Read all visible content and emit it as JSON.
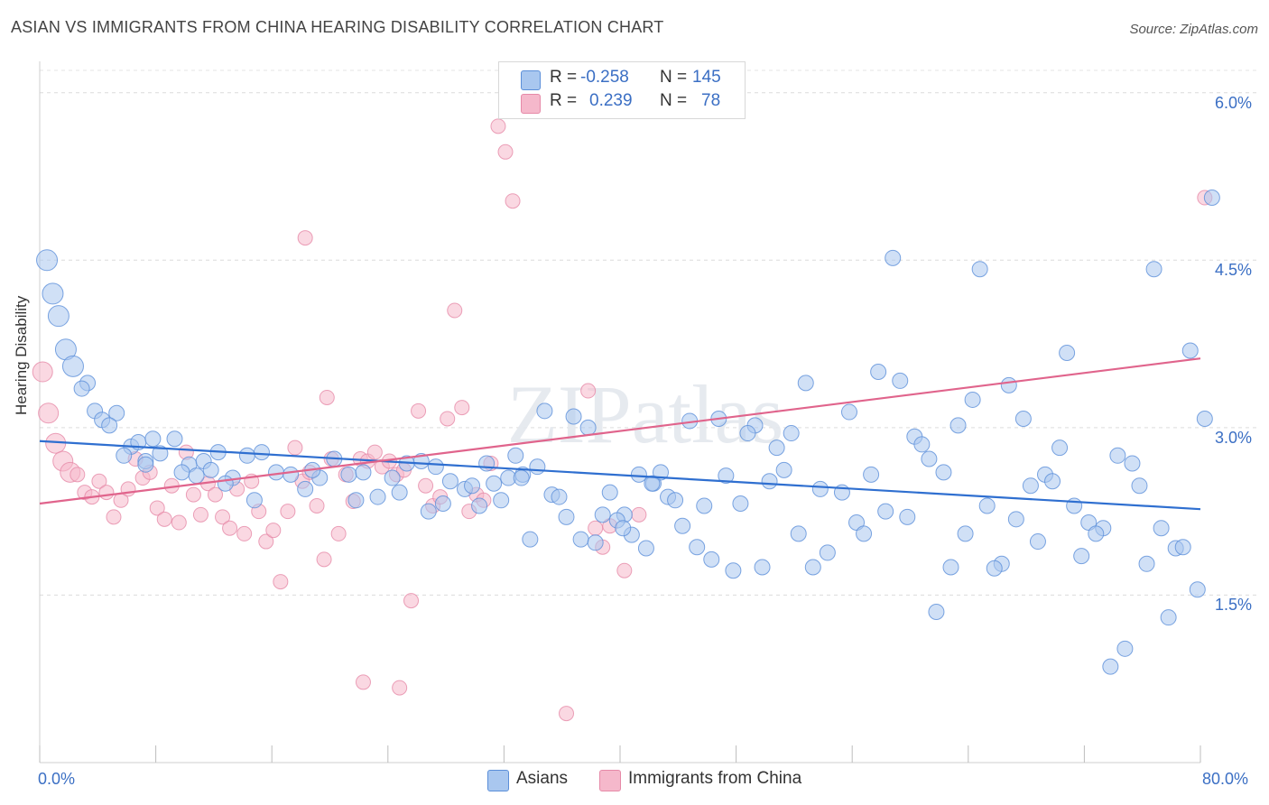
{
  "title": "ASIAN VS IMMIGRANTS FROM CHINA HEARING DISABILITY CORRELATION CHART",
  "source": "Source: ZipAtlas.com",
  "watermark": "ZIPatlas",
  "legend_top": {
    "rows": [
      {
        "r_label": "R =",
        "r_value": "-0.258",
        "n_label": "N =",
        "n_value": "145",
        "color": "#a9c7ef"
      },
      {
        "r_label": "R =",
        "r_value": "0.239",
        "n_label": "N =",
        "n_value": "78",
        "color": "#f5b8cb"
      }
    ]
  },
  "legend_bottom": [
    {
      "label": "Asians",
      "color": "#a9c7ef"
    },
    {
      "label": "Immigrants from China",
      "color": "#f5b8cb"
    }
  ],
  "chart_data": {
    "type": "scatter",
    "title": "ASIAN VS IMMIGRANTS FROM CHINA HEARING DISABILITY CORRELATION CHART",
    "xlabel": "",
    "ylabel": "Hearing Disability",
    "xlim": [
      0,
      80
    ],
    "ylim": [
      0,
      6.2
    ],
    "x_tick_labels": [
      "0.0%",
      "80.0%"
    ],
    "y_ticks": [
      1.5,
      3.0,
      4.5,
      6.0
    ],
    "y_tick_labels": [
      "1.5%",
      "3.0%",
      "4.5%",
      "6.0%"
    ],
    "grid": true,
    "legend_position": "top-center",
    "series": [
      {
        "name": "Asians",
        "color": "#5b8fd9",
        "fill": "#a9c7ef",
        "trend": {
          "x0": 0,
          "y0": 2.88,
          "x1": 80,
          "y1": 2.27,
          "color": "#2f6fd0"
        },
        "points": [
          [
            0.5,
            4.5
          ],
          [
            0.9,
            4.2
          ],
          [
            1.3,
            4.0
          ],
          [
            1.8,
            3.7
          ],
          [
            2.3,
            3.55
          ],
          [
            3.3,
            3.4
          ],
          [
            2.9,
            3.35
          ],
          [
            3.8,
            3.15
          ],
          [
            5.3,
            3.13
          ],
          [
            4.3,
            3.07
          ],
          [
            4.8,
            3.02
          ],
          [
            6.3,
            2.83
          ],
          [
            6.8,
            2.87
          ],
          [
            7.8,
            2.9
          ],
          [
            9.3,
            2.9
          ],
          [
            5.8,
            2.75
          ],
          [
            7.3,
            2.7
          ],
          [
            8.3,
            2.77
          ],
          [
            10.3,
            2.67
          ],
          [
            11.3,
            2.7
          ],
          [
            12.3,
            2.78
          ],
          [
            7.3,
            2.67
          ],
          [
            9.8,
            2.6
          ],
          [
            10.8,
            2.57
          ],
          [
            11.8,
            2.62
          ],
          [
            13.3,
            2.55
          ],
          [
            14.3,
            2.75
          ],
          [
            15.3,
            2.78
          ],
          [
            16.3,
            2.6
          ],
          [
            17.3,
            2.58
          ],
          [
            12.8,
            2.5
          ],
          [
            14.8,
            2.35
          ],
          [
            18.3,
            2.45
          ],
          [
            19.3,
            2.55
          ],
          [
            20.3,
            2.72
          ],
          [
            21.3,
            2.58
          ],
          [
            22.3,
            2.6
          ],
          [
            24.3,
            2.55
          ],
          [
            25.3,
            2.68
          ],
          [
            26.3,
            2.7
          ],
          [
            23.3,
            2.38
          ],
          [
            27.3,
            2.65
          ],
          [
            28.3,
            2.52
          ],
          [
            29.3,
            2.45
          ],
          [
            30.3,
            2.3
          ],
          [
            31.3,
            2.5
          ],
          [
            32.3,
            2.55
          ],
          [
            33.3,
            2.58
          ],
          [
            34.3,
            2.65
          ],
          [
            35.3,
            2.4
          ],
          [
            36.3,
            2.2
          ],
          [
            37.3,
            2.0
          ],
          [
            38.3,
            1.97
          ],
          [
            39.3,
            2.42
          ],
          [
            40.3,
            2.22
          ],
          [
            41.3,
            2.58
          ],
          [
            42.3,
            2.5
          ],
          [
            43.3,
            2.38
          ],
          [
            44.3,
            2.12
          ],
          [
            45.3,
            1.93
          ],
          [
            46.3,
            1.82
          ],
          [
            47.3,
            2.57
          ],
          [
            48.3,
            2.32
          ],
          [
            49.3,
            3.02
          ],
          [
            50.3,
            2.52
          ],
          [
            51.3,
            2.62
          ],
          [
            52.3,
            2.05
          ],
          [
            53.3,
            1.75
          ],
          [
            54.3,
            1.88
          ],
          [
            55.3,
            2.42
          ],
          [
            56.3,
            2.15
          ],
          [
            57.3,
            2.58
          ],
          [
            58.3,
            2.25
          ],
          [
            59.3,
            3.42
          ],
          [
            60.3,
            2.92
          ],
          [
            61.3,
            2.72
          ],
          [
            62.3,
            2.6
          ],
          [
            63.3,
            3.02
          ],
          [
            64.3,
            3.25
          ],
          [
            65.3,
            2.3
          ],
          [
            66.3,
            1.78
          ],
          [
            67.3,
            2.18
          ],
          [
            68.3,
            2.48
          ],
          [
            69.3,
            2.58
          ],
          [
            70.3,
            2.82
          ],
          [
            71.3,
            2.3
          ],
          [
            72.3,
            2.15
          ],
          [
            73.3,
            2.1
          ],
          [
            74.3,
            2.75
          ],
          [
            75.3,
            2.68
          ],
          [
            76.3,
            1.78
          ],
          [
            77.3,
            2.1
          ],
          [
            78.3,
            1.92
          ],
          [
            79.3,
            3.69
          ],
          [
            33.8,
            2.0
          ],
          [
            36.8,
            3.1
          ],
          [
            40.8,
            2.04
          ],
          [
            43.8,
            2.35
          ],
          [
            46.8,
            3.08
          ],
          [
            49.8,
            1.75
          ],
          [
            52.8,
            3.4
          ],
          [
            55.8,
            3.14
          ],
          [
            58.8,
            4.52
          ],
          [
            61.8,
            1.35
          ],
          [
            64.8,
            4.42
          ],
          [
            67.8,
            3.08
          ],
          [
            70.8,
            3.67
          ],
          [
            73.8,
            0.86
          ],
          [
            76.8,
            4.42
          ],
          [
            80.3,
            3.08
          ],
          [
            26.8,
            2.25
          ],
          [
            29.8,
            2.48
          ],
          [
            32.8,
            2.75
          ],
          [
            35.8,
            2.38
          ],
          [
            38.8,
            2.22
          ],
          [
            41.8,
            1.92
          ],
          [
            44.8,
            3.06
          ],
          [
            47.8,
            1.72
          ],
          [
            50.8,
            2.82
          ],
          [
            53.8,
            2.45
          ],
          [
            56.8,
            2.05
          ],
          [
            59.8,
            2.2
          ],
          [
            62.8,
            1.75
          ],
          [
            65.8,
            1.74
          ],
          [
            68.8,
            1.98
          ],
          [
            71.8,
            1.85
          ],
          [
            74.8,
            1.02
          ],
          [
            77.8,
            1.3
          ],
          [
            79.8,
            1.55
          ],
          [
            80.8,
            5.06
          ],
          [
            18.8,
            2.62
          ],
          [
            21.8,
            2.35
          ],
          [
            24.8,
            2.42
          ],
          [
            27.8,
            2.32
          ],
          [
            30.8,
            2.68
          ],
          [
            33.2,
            2.55
          ],
          [
            39.8,
            2.17
          ],
          [
            42.8,
            2.6
          ],
          [
            45.8,
            2.3
          ],
          [
            48.8,
            2.95
          ],
          [
            51.8,
            2.95
          ],
          [
            57.8,
            3.5
          ],
          [
            60.8,
            2.85
          ],
          [
            63.8,
            2.05
          ],
          [
            66.8,
            3.38
          ],
          [
            69.8,
            2.52
          ],
          [
            72.8,
            2.05
          ],
          [
            75.8,
            2.48
          ],
          [
            78.8,
            1.93
          ],
          [
            31.8,
            2.35
          ],
          [
            34.8,
            3.15
          ],
          [
            37.8,
            3.0
          ],
          [
            40.2,
            2.1
          ],
          [
            42.2,
            2.5
          ]
        ]
      },
      {
        "name": "Immigrants from China",
        "color": "#e68aa8",
        "fill": "#f5b8cb",
        "trend": {
          "x0": 0,
          "y0": 2.32,
          "x1": 80,
          "y1": 3.62,
          "color": "#e0648c"
        },
        "points": [
          [
            0.2,
            3.5
          ],
          [
            0.6,
            3.13
          ],
          [
            1.1,
            2.86
          ],
          [
            1.6,
            2.7
          ],
          [
            2.1,
            2.6
          ],
          [
            2.6,
            2.58
          ],
          [
            3.1,
            2.42
          ],
          [
            3.6,
            2.38
          ],
          [
            4.1,
            2.52
          ],
          [
            4.6,
            2.42
          ],
          [
            5.1,
            2.2
          ],
          [
            5.6,
            2.35
          ],
          [
            6.1,
            2.45
          ],
          [
            6.6,
            2.72
          ],
          [
            7.1,
            2.55
          ],
          [
            7.6,
            2.6
          ],
          [
            8.1,
            2.28
          ],
          [
            8.6,
            2.18
          ],
          [
            9.1,
            2.48
          ],
          [
            9.6,
            2.15
          ],
          [
            10.1,
            2.78
          ],
          [
            10.6,
            2.4
          ],
          [
            11.1,
            2.22
          ],
          [
            11.6,
            2.5
          ],
          [
            12.1,
            2.4
          ],
          [
            12.6,
            2.2
          ],
          [
            13.1,
            2.1
          ],
          [
            13.6,
            2.45
          ],
          [
            14.1,
            2.05
          ],
          [
            14.6,
            2.52
          ],
          [
            15.1,
            2.25
          ],
          [
            15.6,
            1.98
          ],
          [
            16.1,
            2.08
          ],
          [
            16.6,
            1.62
          ],
          [
            17.1,
            2.25
          ],
          [
            17.6,
            2.82
          ],
          [
            18.1,
            2.52
          ],
          [
            18.6,
            2.6
          ],
          [
            19.1,
            2.3
          ],
          [
            19.6,
            1.82
          ],
          [
            20.1,
            2.72
          ],
          [
            20.6,
            2.05
          ],
          [
            21.1,
            2.58
          ],
          [
            21.6,
            2.34
          ],
          [
            22.1,
            2.72
          ],
          [
            22.6,
            2.7
          ],
          [
            23.1,
            2.78
          ],
          [
            23.6,
            2.65
          ],
          [
            24.1,
            2.7
          ],
          [
            24.6,
            2.58
          ],
          [
            25.1,
            2.62
          ],
          [
            25.6,
            1.45
          ],
          [
            26.1,
            3.15
          ],
          [
            26.6,
            2.48
          ],
          [
            27.1,
            2.3
          ],
          [
            27.6,
            2.38
          ],
          [
            28.1,
            3.08
          ],
          [
            28.6,
            4.05
          ],
          [
            29.1,
            3.18
          ],
          [
            29.6,
            2.25
          ],
          [
            30.1,
            2.4
          ],
          [
            30.6,
            2.35
          ],
          [
            31.1,
            2.68
          ],
          [
            31.6,
            5.7
          ],
          [
            32.1,
            5.47
          ],
          [
            32.6,
            5.03
          ],
          [
            18.3,
            4.7
          ],
          [
            19.8,
            3.27
          ],
          [
            22.3,
            0.72
          ],
          [
            24.8,
            0.67
          ],
          [
            36.3,
            0.44
          ],
          [
            37.8,
            3.33
          ],
          [
            38.3,
            2.1
          ],
          [
            38.8,
            1.93
          ],
          [
            39.3,
            2.12
          ],
          [
            40.3,
            1.72
          ],
          [
            41.3,
            2.22
          ],
          [
            80.3,
            5.06
          ]
        ]
      }
    ]
  }
}
